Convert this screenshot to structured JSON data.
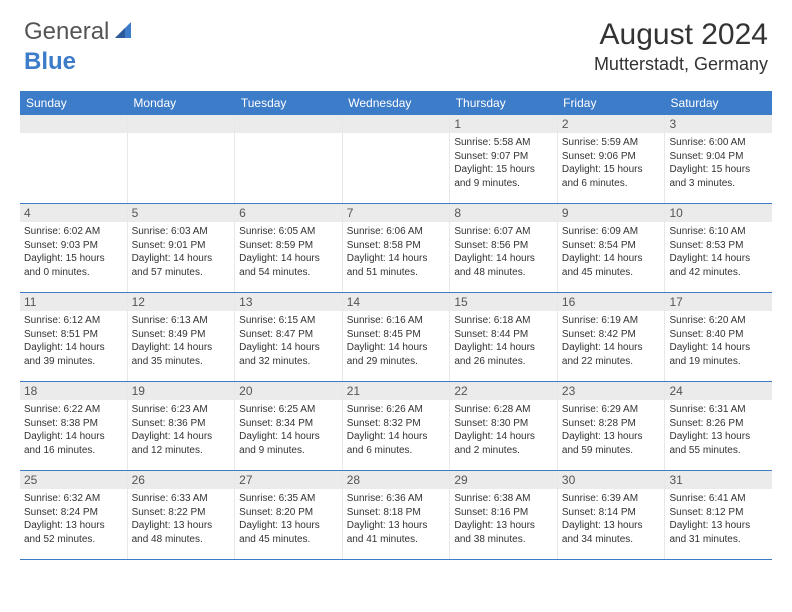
{
  "logo": {
    "word1": "General",
    "word2": "Blue"
  },
  "title": "August 2024",
  "location": "Mutterstadt, Germany",
  "colors": {
    "accent": "#3d7cc9",
    "header_bg": "#3d7cc9",
    "daynum_bg": "#ebebeb",
    "text": "#333333",
    "grid": "#e8e8e8",
    "background": "#ffffff"
  },
  "weekdays": [
    "Sunday",
    "Monday",
    "Tuesday",
    "Wednesday",
    "Thursday",
    "Friday",
    "Saturday"
  ],
  "weeks": [
    [
      {
        "n": "",
        "sr": "",
        "ss": "",
        "dl": ""
      },
      {
        "n": "",
        "sr": "",
        "ss": "",
        "dl": ""
      },
      {
        "n": "",
        "sr": "",
        "ss": "",
        "dl": ""
      },
      {
        "n": "",
        "sr": "",
        "ss": "",
        "dl": ""
      },
      {
        "n": "1",
        "sr": "Sunrise: 5:58 AM",
        "ss": "Sunset: 9:07 PM",
        "dl": "Daylight: 15 hours and 9 minutes."
      },
      {
        "n": "2",
        "sr": "Sunrise: 5:59 AM",
        "ss": "Sunset: 9:06 PM",
        "dl": "Daylight: 15 hours and 6 minutes."
      },
      {
        "n": "3",
        "sr": "Sunrise: 6:00 AM",
        "ss": "Sunset: 9:04 PM",
        "dl": "Daylight: 15 hours and 3 minutes."
      }
    ],
    [
      {
        "n": "4",
        "sr": "Sunrise: 6:02 AM",
        "ss": "Sunset: 9:03 PM",
        "dl": "Daylight: 15 hours and 0 minutes."
      },
      {
        "n": "5",
        "sr": "Sunrise: 6:03 AM",
        "ss": "Sunset: 9:01 PM",
        "dl": "Daylight: 14 hours and 57 minutes."
      },
      {
        "n": "6",
        "sr": "Sunrise: 6:05 AM",
        "ss": "Sunset: 8:59 PM",
        "dl": "Daylight: 14 hours and 54 minutes."
      },
      {
        "n": "7",
        "sr": "Sunrise: 6:06 AM",
        "ss": "Sunset: 8:58 PM",
        "dl": "Daylight: 14 hours and 51 minutes."
      },
      {
        "n": "8",
        "sr": "Sunrise: 6:07 AM",
        "ss": "Sunset: 8:56 PM",
        "dl": "Daylight: 14 hours and 48 minutes."
      },
      {
        "n": "9",
        "sr": "Sunrise: 6:09 AM",
        "ss": "Sunset: 8:54 PM",
        "dl": "Daylight: 14 hours and 45 minutes."
      },
      {
        "n": "10",
        "sr": "Sunrise: 6:10 AM",
        "ss": "Sunset: 8:53 PM",
        "dl": "Daylight: 14 hours and 42 minutes."
      }
    ],
    [
      {
        "n": "11",
        "sr": "Sunrise: 6:12 AM",
        "ss": "Sunset: 8:51 PM",
        "dl": "Daylight: 14 hours and 39 minutes."
      },
      {
        "n": "12",
        "sr": "Sunrise: 6:13 AM",
        "ss": "Sunset: 8:49 PM",
        "dl": "Daylight: 14 hours and 35 minutes."
      },
      {
        "n": "13",
        "sr": "Sunrise: 6:15 AM",
        "ss": "Sunset: 8:47 PM",
        "dl": "Daylight: 14 hours and 32 minutes."
      },
      {
        "n": "14",
        "sr": "Sunrise: 6:16 AM",
        "ss": "Sunset: 8:45 PM",
        "dl": "Daylight: 14 hours and 29 minutes."
      },
      {
        "n": "15",
        "sr": "Sunrise: 6:18 AM",
        "ss": "Sunset: 8:44 PM",
        "dl": "Daylight: 14 hours and 26 minutes."
      },
      {
        "n": "16",
        "sr": "Sunrise: 6:19 AM",
        "ss": "Sunset: 8:42 PM",
        "dl": "Daylight: 14 hours and 22 minutes."
      },
      {
        "n": "17",
        "sr": "Sunrise: 6:20 AM",
        "ss": "Sunset: 8:40 PM",
        "dl": "Daylight: 14 hours and 19 minutes."
      }
    ],
    [
      {
        "n": "18",
        "sr": "Sunrise: 6:22 AM",
        "ss": "Sunset: 8:38 PM",
        "dl": "Daylight: 14 hours and 16 minutes."
      },
      {
        "n": "19",
        "sr": "Sunrise: 6:23 AM",
        "ss": "Sunset: 8:36 PM",
        "dl": "Daylight: 14 hours and 12 minutes."
      },
      {
        "n": "20",
        "sr": "Sunrise: 6:25 AM",
        "ss": "Sunset: 8:34 PM",
        "dl": "Daylight: 14 hours and 9 minutes."
      },
      {
        "n": "21",
        "sr": "Sunrise: 6:26 AM",
        "ss": "Sunset: 8:32 PM",
        "dl": "Daylight: 14 hours and 6 minutes."
      },
      {
        "n": "22",
        "sr": "Sunrise: 6:28 AM",
        "ss": "Sunset: 8:30 PM",
        "dl": "Daylight: 14 hours and 2 minutes."
      },
      {
        "n": "23",
        "sr": "Sunrise: 6:29 AM",
        "ss": "Sunset: 8:28 PM",
        "dl": "Daylight: 13 hours and 59 minutes."
      },
      {
        "n": "24",
        "sr": "Sunrise: 6:31 AM",
        "ss": "Sunset: 8:26 PM",
        "dl": "Daylight: 13 hours and 55 minutes."
      }
    ],
    [
      {
        "n": "25",
        "sr": "Sunrise: 6:32 AM",
        "ss": "Sunset: 8:24 PM",
        "dl": "Daylight: 13 hours and 52 minutes."
      },
      {
        "n": "26",
        "sr": "Sunrise: 6:33 AM",
        "ss": "Sunset: 8:22 PM",
        "dl": "Daylight: 13 hours and 48 minutes."
      },
      {
        "n": "27",
        "sr": "Sunrise: 6:35 AM",
        "ss": "Sunset: 8:20 PM",
        "dl": "Daylight: 13 hours and 45 minutes."
      },
      {
        "n": "28",
        "sr": "Sunrise: 6:36 AM",
        "ss": "Sunset: 8:18 PM",
        "dl": "Daylight: 13 hours and 41 minutes."
      },
      {
        "n": "29",
        "sr": "Sunrise: 6:38 AM",
        "ss": "Sunset: 8:16 PM",
        "dl": "Daylight: 13 hours and 38 minutes."
      },
      {
        "n": "30",
        "sr": "Sunrise: 6:39 AM",
        "ss": "Sunset: 8:14 PM",
        "dl": "Daylight: 13 hours and 34 minutes."
      },
      {
        "n": "31",
        "sr": "Sunrise: 6:41 AM",
        "ss": "Sunset: 8:12 PM",
        "dl": "Daylight: 13 hours and 31 minutes."
      }
    ]
  ]
}
